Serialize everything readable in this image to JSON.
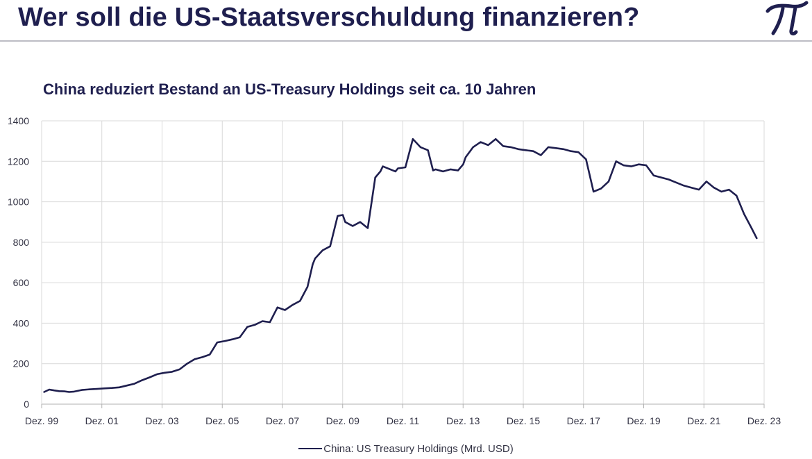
{
  "header": {
    "title": "Wer soll die US-Staatsverschuldung finanzieren?"
  },
  "colors": {
    "title": "#1f1f4f",
    "line": "#1f1f4f",
    "grid": "#d9d9d9",
    "header_rule": "#bcbcc4"
  },
  "logo": {
    "icon": "pi-logo-icon"
  },
  "chart_data": {
    "type": "line",
    "title": "China reduziert Bestand an US-Treasury Holdings seit ca. 10 Jahren",
    "xlabel": "",
    "ylabel": "",
    "ylim": [
      0,
      1400
    ],
    "yticks": [
      "0",
      "200",
      "400",
      "600",
      "800",
      "1000",
      "1200",
      "1400"
    ],
    "xlim": [
      1999.917,
      2023.917
    ],
    "xticks": [
      {
        "x": 1999.917,
        "label": "Dez. 99"
      },
      {
        "x": 2001.917,
        "label": "Dez. 01"
      },
      {
        "x": 2003.917,
        "label": "Dez. 03"
      },
      {
        "x": 2005.917,
        "label": "Dez. 05"
      },
      {
        "x": 2007.917,
        "label": "Dez. 07"
      },
      {
        "x": 2009.917,
        "label": "Dez. 09"
      },
      {
        "x": 2011.917,
        "label": "Dez. 11"
      },
      {
        "x": 2013.917,
        "label": "Dez. 13"
      },
      {
        "x": 2015.917,
        "label": "Dez. 15"
      },
      {
        "x": 2017.917,
        "label": "Dez. 17"
      },
      {
        "x": 2019.917,
        "label": "Dez. 19"
      },
      {
        "x": 2021.917,
        "label": "Dez. 21"
      },
      {
        "x": 2023.917,
        "label": "Dez. 23"
      }
    ],
    "grid": true,
    "legend_position": "bottom",
    "series": [
      {
        "name": "China: US Treasury Holdings (Mrd. USD)",
        "x": [
          2000.0,
          2000.17,
          2000.33,
          2000.5,
          2000.67,
          2000.83,
          2001.0,
          2001.25,
          2001.5,
          2001.75,
          2002.0,
          2002.25,
          2002.5,
          2002.75,
          2003.0,
          2003.25,
          2003.5,
          2003.75,
          2004.0,
          2004.25,
          2004.5,
          2004.75,
          2005.0,
          2005.25,
          2005.5,
          2005.75,
          2006.0,
          2006.25,
          2006.5,
          2006.75,
          2007.0,
          2007.25,
          2007.5,
          2007.75,
          2008.0,
          2008.25,
          2008.5,
          2008.75,
          2008.92,
          2009.0,
          2009.25,
          2009.5,
          2009.75,
          2009.92,
          2010.0,
          2010.25,
          2010.5,
          2010.75,
          2011.0,
          2011.17,
          2011.25,
          2011.5,
          2011.67,
          2011.75,
          2012.0,
          2012.25,
          2012.5,
          2012.75,
          2012.92,
          2013.0,
          2013.25,
          2013.5,
          2013.75,
          2013.92,
          2014.0,
          2014.25,
          2014.5,
          2014.75,
          2015.0,
          2015.25,
          2015.5,
          2015.75,
          2016.0,
          2016.25,
          2016.5,
          2016.75,
          2017.0,
          2017.25,
          2017.5,
          2017.75,
          2018.0,
          2018.25,
          2018.5,
          2018.75,
          2019.0,
          2019.25,
          2019.5,
          2019.75,
          2020.0,
          2020.25,
          2020.5,
          2020.75,
          2021.0,
          2021.25,
          2021.5,
          2021.75,
          2022.0,
          2022.25,
          2022.5,
          2022.75,
          2023.0,
          2023.25,
          2023.5,
          2023.67
        ],
        "values": [
          60,
          72,
          68,
          64,
          63,
          60,
          62,
          70,
          73,
          75,
          78,
          80,
          83,
          92,
          101,
          118,
          132,
          148,
          155,
          160,
          172,
          200,
          222,
          232,
          245,
          305,
          312,
          320,
          330,
          382,
          392,
          410,
          405,
          478,
          465,
          490,
          510,
          580,
          690,
          720,
          760,
          780,
          930,
          935,
          900,
          880,
          900,
          870,
          1120,
          1150,
          1175,
          1160,
          1150,
          1165,
          1170,
          1310,
          1270,
          1255,
          1155,
          1160,
          1150,
          1160,
          1155,
          1185,
          1220,
          1270,
          1295,
          1280,
          1310,
          1275,
          1270,
          1260,
          1255,
          1250,
          1230,
          1270,
          1265,
          1260,
          1250,
          1245,
          1210,
          1050,
          1065,
          1100,
          1200,
          1180,
          1175,
          1185,
          1180,
          1130,
          1120,
          1110,
          1095,
          1080,
          1070,
          1060,
          1100,
          1070,
          1050,
          1060,
          1030,
          940,
          870,
          820
        ]
      }
    ]
  }
}
